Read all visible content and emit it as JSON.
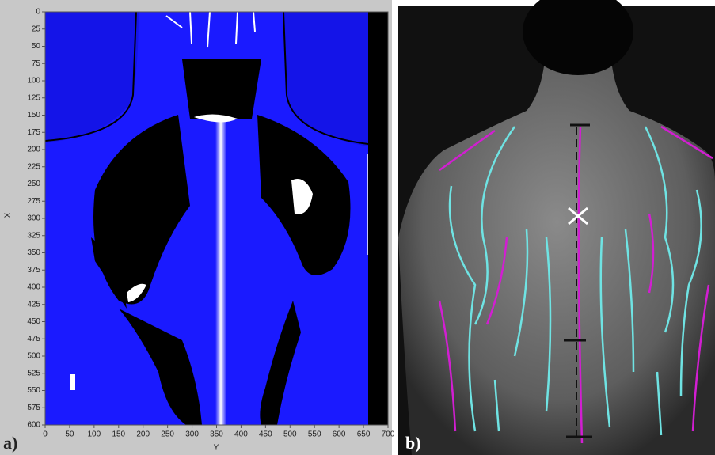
{
  "chart_data": {
    "type": "image",
    "panel_labels": [
      "a)",
      "b)"
    ],
    "xlabel": "Y",
    "ylabel": "X",
    "xlim": [
      0,
      700
    ],
    "xticks": [
      0,
      50,
      100,
      150,
      200,
      250,
      300,
      350,
      400,
      450,
      500,
      550,
      600,
      650,
      700
    ],
    "ylim": [
      0,
      600
    ],
    "yticks": [
      0,
      25,
      50,
      75,
      100,
      125,
      150,
      175,
      200,
      225,
      250,
      275,
      300,
      325,
      350,
      375,
      400,
      425,
      450,
      475,
      500,
      525,
      550,
      575,
      600
    ],
    "y_inverted": true
  }
}
